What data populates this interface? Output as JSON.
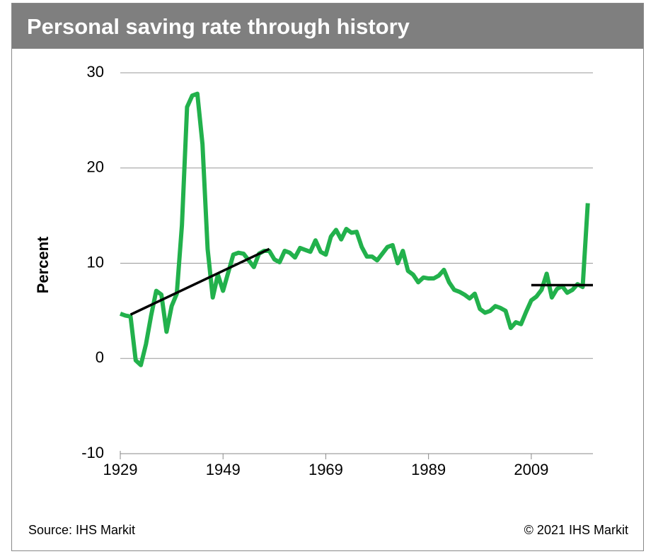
{
  "chart_data": {
    "type": "line",
    "title": "Personal saving rate through history",
    "ylabel": "Percent",
    "source": "Source: IHS Markit",
    "copyright": "© 2021 IHS Markit",
    "xlim": [
      1929,
      2021
    ],
    "xticks": [
      1929,
      1949,
      1969,
      1989,
      2009
    ],
    "ylim": [
      -10,
      30
    ],
    "yticks": [
      -10,
      0,
      10,
      20,
      30
    ],
    "grid": true,
    "series": [
      {
        "color": "#22b14c",
        "x": [
          1929,
          1930,
          1931,
          1932,
          1933,
          1934,
          1935,
          1936,
          1937,
          1938,
          1939,
          1940,
          1941,
          1942,
          1943,
          1944,
          1945,
          1946,
          1947,
          1948,
          1949,
          1950,
          1951,
          1952,
          1953,
          1954,
          1955,
          1956,
          1957,
          1958,
          1959,
          1960,
          1961,
          1962,
          1963,
          1964,
          1965,
          1966,
          1967,
          1968,
          1969,
          1970,
          1971,
          1972,
          1973,
          1974,
          1975,
          1976,
          1977,
          1978,
          1979,
          1980,
          1981,
          1982,
          1983,
          1984,
          1985,
          1986,
          1987,
          1988,
          1989,
          1990,
          1991,
          1992,
          1993,
          1994,
          1995,
          1996,
          1997,
          1998,
          1999,
          2000,
          2001,
          2002,
          2003,
          2004,
          2005,
          2006,
          2007,
          2008,
          2009,
          2010,
          2011,
          2012,
          2013,
          2014,
          2015,
          2016,
          2017,
          2018,
          2019,
          2020
        ],
        "values": [
          4.7,
          4.5,
          4.4,
          -0.2,
          -0.7,
          1.5,
          4.5,
          7.1,
          6.7,
          2.8,
          5.5,
          6.8,
          14,
          26.4,
          27.6,
          27.8,
          22.5,
          11.5,
          6.4,
          8.8,
          7.1,
          9,
          10.9,
          11.1,
          11,
          10.3,
          9.6,
          11,
          11.3,
          11.3,
          10.4,
          10.1,
          11.3,
          11.1,
          10.6,
          11.6,
          11.4,
          11.2,
          12.4,
          11.2,
          10.9,
          12.8,
          13.5,
          12.5,
          13.6,
          13.2,
          13.3,
          11.7,
          10.7,
          10.7,
          10.3,
          11,
          11.7,
          11.9,
          10,
          11.3,
          9.2,
          8.8,
          8,
          8.5,
          8.4,
          8.4,
          8.7,
          9.3,
          8,
          7.2,
          7,
          6.7,
          6.3,
          6.8,
          5.2,
          4.8,
          5,
          5.5,
          5.3,
          5,
          3.2,
          3.8,
          3.6,
          4.9,
          6.1,
          6.5,
          7.2,
          8.9,
          6.4,
          7.3,
          7.6,
          6.9,
          7.2,
          7.8,
          7.5,
          16.3
        ]
      },
      {
        "color": "#000000",
        "x": [
          1931,
          1958
        ],
        "values": [
          4.6,
          11.5
        ]
      },
      {
        "color": "#000000",
        "x": [
          2009,
          2021
        ],
        "values": [
          7.7,
          7.7
        ]
      }
    ]
  }
}
